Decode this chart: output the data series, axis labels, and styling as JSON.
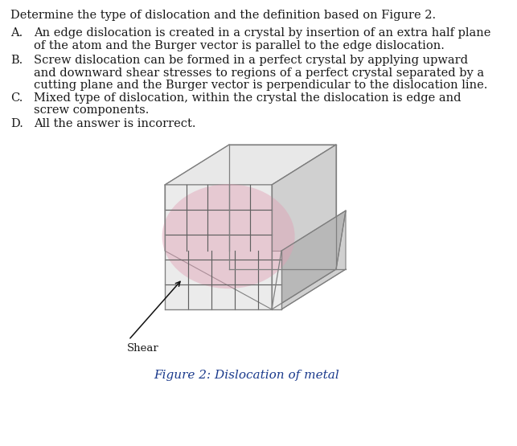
{
  "title": "Determine the type of dislocation and the definition based on Figure 2.",
  "option_A_label": "A.",
  "option_A_line1": "An edge dislocation is created in a crystal by insertion of an extra half plane",
  "option_A_line2": "of the atom and the Burger vector is parallel to the edge dislocation.",
  "option_B_label": "B.",
  "option_B_line1": "Screw dislocation can be formed in a perfect crystal by applying upward",
  "option_B_line2": "and downward shear stresses to regions of a perfect crystal separated by a",
  "option_B_line3": "cutting plane and the Burger vector is perpendicular to the dislocation line.",
  "option_C_label": "C.",
  "option_C_line1": "Mixed type of dislocation, within the crystal the dislocation is edge and",
  "option_C_line2": "screw components.",
  "option_D_label": "D.",
  "option_D_line1": "All the answer is incorrect.",
  "shear_label": "Shear",
  "figure_caption": "Figure 2: Dislocation of metal",
  "text_color": "#1a1a1a",
  "caption_color": "#1a3a8c",
  "bg_color": "#ffffff",
  "grid_color": "#606060",
  "block_light": "#e8e8e8",
  "block_mid": "#d0d0d0",
  "block_dark": "#b8b8b8",
  "block_edge_color": "#808080",
  "pink_color": "#dba8b8",
  "font_size_title": 10.5,
  "font_size_options": 10.5,
  "font_size_caption": 11,
  "font_size_shear": 9.5
}
